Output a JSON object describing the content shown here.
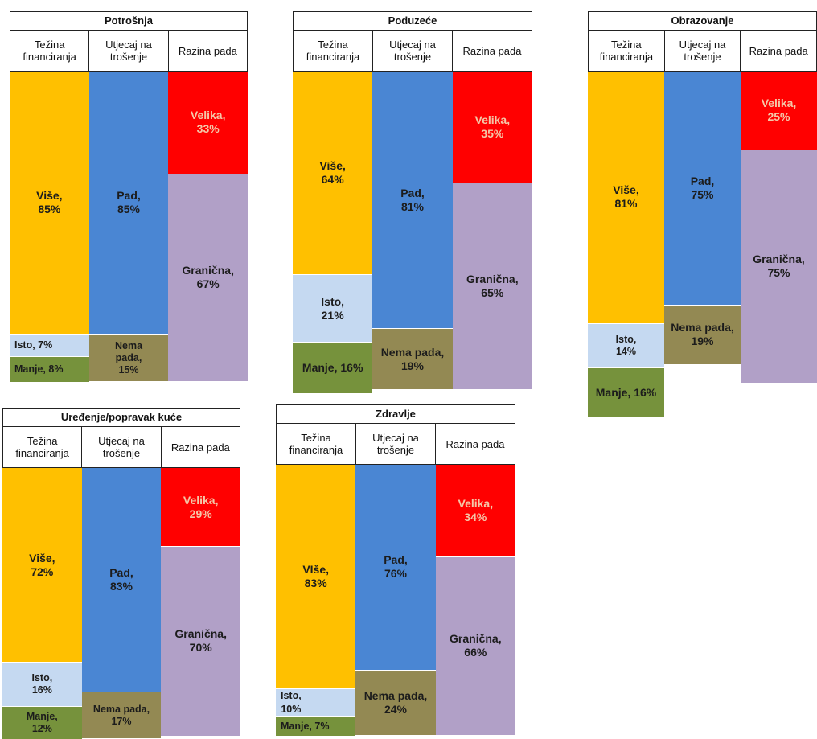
{
  "colors": {
    "vise": "#ffc000",
    "isto": "#c5d9f1",
    "manje": "#76923c",
    "pad": "#4a86d3",
    "nema_pada": "#938953",
    "velika": "#ff0000",
    "granicna": "#b1a0c7"
  },
  "chart_data": [
    {
      "type": "bar",
      "title": "Potrošnja",
      "columns": [
        "Težina financiranja",
        "Utjecaj na trošenje",
        "Razina pada"
      ],
      "series": [
        {
          "column": "Težina financiranja",
          "segments": [
            {
              "label": "Više",
              "value": 85,
              "text": "Više,\n85%"
            },
            {
              "label": "Isto",
              "value": 7,
              "text": "Isto, 7%"
            },
            {
              "label": "Manje",
              "value": 8,
              "text": "Manje, 8%"
            }
          ]
        },
        {
          "column": "Utjecaj na trošenje",
          "segments": [
            {
              "label": "Pad",
              "value": 85,
              "text": "Pad,\n85%"
            },
            {
              "label": "Nema pada",
              "value": 15,
              "text": "Nema\npada,\n15%"
            }
          ]
        },
        {
          "column": "Razina pada",
          "segments": [
            {
              "label": "Velika",
              "value": 33,
              "text": "Velika,\n33%"
            },
            {
              "label": "Granična",
              "value": 67,
              "text": "Granična,\n67%"
            }
          ]
        }
      ]
    },
    {
      "type": "bar",
      "title": "Poduzeće",
      "columns": [
        "Težina financiranja",
        "Utjecaj na trošenje",
        "Razina pada"
      ],
      "series": [
        {
          "column": "Težina financiranja",
          "segments": [
            {
              "label": "Više",
              "value": 64,
              "text": "Više,\n64%"
            },
            {
              "label": "Isto",
              "value": 21,
              "text": "Isto,\n21%"
            },
            {
              "label": "Manje",
              "value": 16,
              "text": "Manje, 16%"
            }
          ]
        },
        {
          "column": "Utjecaj na trošenje",
          "segments": [
            {
              "label": "Pad",
              "value": 81,
              "text": "Pad,\n81%"
            },
            {
              "label": "Nema pada",
              "value": 19,
              "text": "Nema pada,\n19%"
            }
          ]
        },
        {
          "column": "Razina pada",
          "segments": [
            {
              "label": "Velika",
              "value": 35,
              "text": "Velika,\n35%"
            },
            {
              "label": "Granična",
              "value": 65,
              "text": "Granična,\n65%"
            }
          ]
        }
      ]
    },
    {
      "type": "bar",
      "title": "Obrazovanje",
      "columns": [
        "Težina financiranja",
        "Utjecaj na trošenje",
        "Razina pada"
      ],
      "series": [
        {
          "column": "Težina financiranja",
          "segments": [
            {
              "label": "Više",
              "value": 81,
              "text": "Više,\n81%"
            },
            {
              "label": "Isto",
              "value": 14,
              "text": "Isto,\n14%"
            },
            {
              "label": "Manje",
              "value": 16,
              "text": "Manje, 16%"
            }
          ]
        },
        {
          "column": "Utjecaj na trošenje",
          "segments": [
            {
              "label": "Pad",
              "value": 75,
              "text": "Pad,\n75%"
            },
            {
              "label": "Nema pada",
              "value": 19,
              "text": "Nema pada,\n19%"
            }
          ]
        },
        {
          "column": "Razina pada",
          "segments": [
            {
              "label": "Velika",
              "value": 25,
              "text": "Velika,\n25%"
            },
            {
              "label": "Granična",
              "value": 75,
              "text": "Granična,\n75%"
            }
          ]
        }
      ]
    },
    {
      "type": "bar",
      "title": "Uređenje/popravak kuće",
      "columns": [
        "Težina financiranja",
        "Utjecaj na trošenje",
        "Razina pada"
      ],
      "series": [
        {
          "column": "Težina financiranja",
          "segments": [
            {
              "label": "Više",
              "value": 72,
              "text": "Više,\n72%"
            },
            {
              "label": "Isto",
              "value": 16,
              "text": "Isto,\n16%"
            },
            {
              "label": "Manje",
              "value": 12,
              "text": "Manje,\n12%"
            }
          ]
        },
        {
          "column": "Utjecaj na trošenje",
          "segments": [
            {
              "label": "Pad",
              "value": 83,
              "text": "Pad,\n83%"
            },
            {
              "label": "Nema pada",
              "value": 17,
              "text": "Nema pada,\n17%"
            }
          ]
        },
        {
          "column": "Razina pada",
          "segments": [
            {
              "label": "Velika",
              "value": 29,
              "text": "Velika,\n29%"
            },
            {
              "label": "Granična",
              "value": 70,
              "text": "Granična,\n70%"
            }
          ]
        }
      ]
    },
    {
      "type": "bar",
      "title": "Zdravlje",
      "columns": [
        "Težina financiranja",
        "Utjecaj na trošenje",
        "Razina pada"
      ],
      "series": [
        {
          "column": "Težina financiranja",
          "segments": [
            {
              "label": "Više",
              "value": 83,
              "text": "VIše,\n83%"
            },
            {
              "label": "Isto",
              "value": 10,
              "text": "Isto,\n10%"
            },
            {
              "label": "Manje",
              "value": 7,
              "text": "Manje, 7%"
            }
          ]
        },
        {
          "column": "Utjecaj na trošenje",
          "segments": [
            {
              "label": "Pad",
              "value": 76,
              "text": "Pad,\n76%"
            },
            {
              "label": "Nema pada",
              "value": 24,
              "text": "Nema pada,\n24%"
            }
          ]
        },
        {
          "column": "Razina pada",
          "segments": [
            {
              "label": "Velika",
              "value": 34,
              "text": "Velika,\n34%"
            },
            {
              "label": "Granična",
              "value": 66,
              "text": "Granična,\n66%"
            }
          ]
        }
      ]
    }
  ]
}
